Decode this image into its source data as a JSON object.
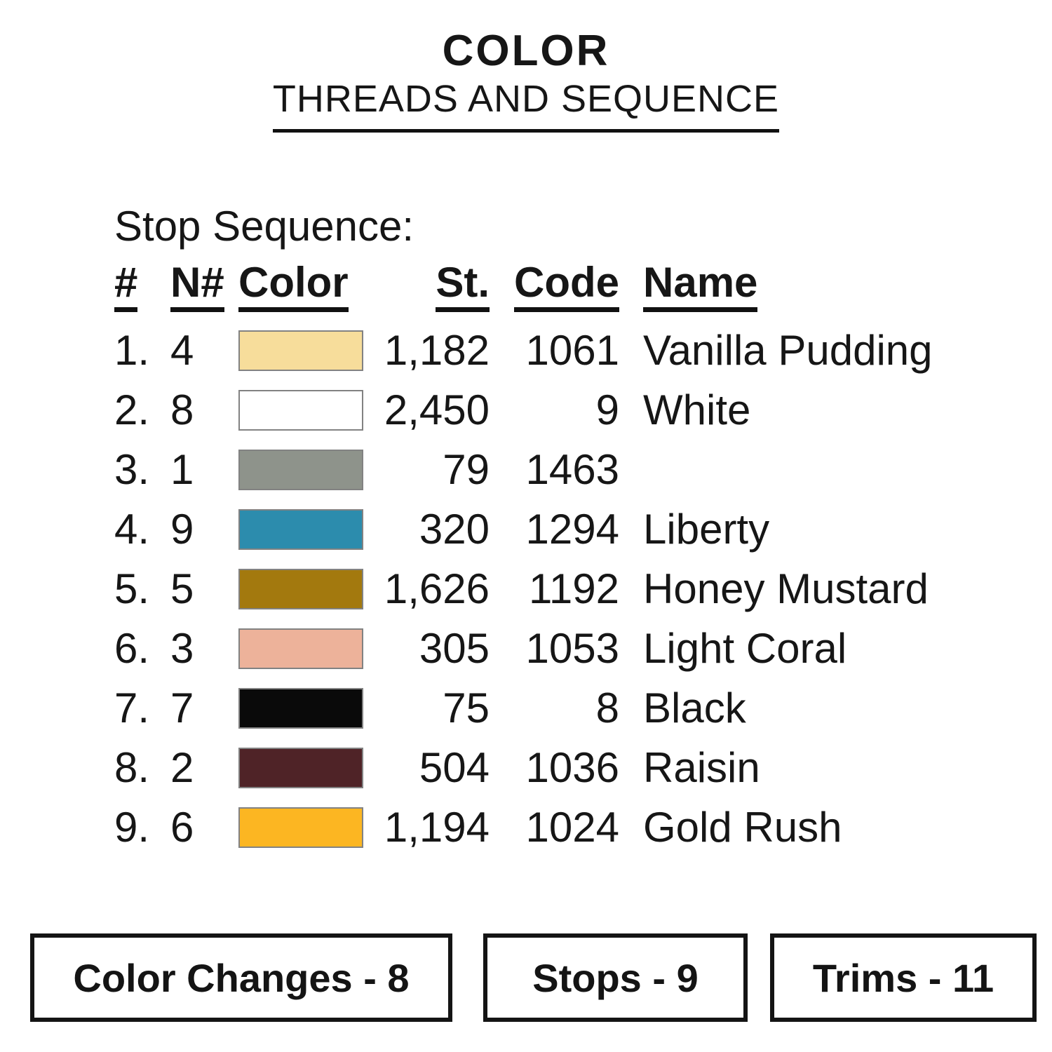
{
  "title": {
    "line1": "COLOR",
    "line2": "THREADS AND SEQUENCE"
  },
  "sequence": {
    "heading": "Stop Sequence:",
    "headers": {
      "num": "#",
      "needle": "N#",
      "color": "Color",
      "stitches": "St.",
      "code": "Code",
      "name": "Name"
    },
    "rows": [
      {
        "num": "1.",
        "needle": "4",
        "swatch": "#F7DD9B",
        "st": "1,182",
        "code": "1061",
        "name": "Vanilla Pudding"
      },
      {
        "num": "2.",
        "needle": "8",
        "swatch": "#FFFFFF",
        "st": "2,450",
        "code": "9",
        "name": "White"
      },
      {
        "num": "3.",
        "needle": "1",
        "swatch": "#8E938B",
        "st": "79",
        "code": "1463",
        "name": ""
      },
      {
        "num": "4.",
        "needle": "9",
        "swatch": "#2C8CAD",
        "st": "320",
        "code": "1294",
        "name": "Liberty"
      },
      {
        "num": "5.",
        "needle": "5",
        "swatch": "#A3790E",
        "st": "1,626",
        "code": "1192",
        "name": "Honey Mustard"
      },
      {
        "num": "6.",
        "needle": "3",
        "swatch": "#EDB29A",
        "st": "305",
        "code": "1053",
        "name": "Light Coral"
      },
      {
        "num": "7.",
        "needle": "7",
        "swatch": "#0A0A0A",
        "st": "75",
        "code": "8",
        "name": "Black"
      },
      {
        "num": "8.",
        "needle": "2",
        "swatch": "#4F2327",
        "st": "504",
        "code": "1036",
        "name": "Raisin"
      },
      {
        "num": "9.",
        "needle": "6",
        "swatch": "#FCB622",
        "st": "1,194",
        "code": "1024",
        "name": "Gold Rush"
      }
    ]
  },
  "summary": {
    "color_changes": "Color Changes - 8",
    "stops": "Stops - 9",
    "trims": "Trims - 11"
  },
  "colors": {
    "text": "#161616",
    "rule": "#111111",
    "swatch_border": "#828282",
    "background": "#FFFFFF"
  }
}
